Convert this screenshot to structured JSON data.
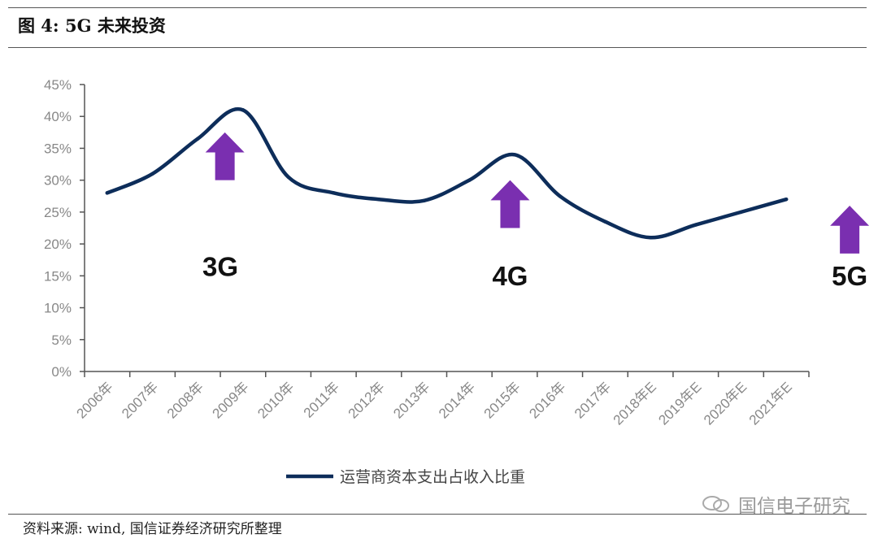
{
  "figure": {
    "title": "图 4:  5G 未来投资",
    "source": "资料来源: wind, 国信证券经济研究所整理",
    "watermark": "国信电子研究"
  },
  "colors": {
    "line": "#0d2d5a",
    "arrow": "#7a2fb0",
    "axis": "#555555",
    "tick_text": "#888888"
  },
  "chart_data": {
    "type": "line",
    "categories": [
      "2006年",
      "2007年",
      "2008年",
      "2009年",
      "2010年",
      "2011年",
      "2012年",
      "2013年",
      "2014年",
      "2015年",
      "2016年",
      "2017年",
      "2018年E",
      "2019年E",
      "2020年E",
      "2021年E"
    ],
    "series": [
      {
        "name": "运营商资本支出占收入比重",
        "values": [
          28.0,
          31.0,
          36.5,
          41.0,
          30.5,
          28.0,
          27.0,
          26.8,
          30.0,
          34.0,
          27.5,
          23.5,
          21.0,
          23.0,
          25.0,
          27.0
        ]
      }
    ],
    "y_ticks": [
      "0%",
      "5%",
      "10%",
      "15%",
      "20%",
      "25%",
      "30%",
      "35%",
      "40%",
      "45%"
    ],
    "ylim": [
      0,
      45
    ],
    "annotations": [
      {
        "label": "3G",
        "arrow_x": 3.1,
        "arrow_y": [
          30.0,
          37.5
        ],
        "label_x": 3.0,
        "label_y": 15.0
      },
      {
        "label": "4G",
        "arrow_x": 9.4,
        "arrow_y": [
          22.5,
          30.0
        ],
        "label_x": 9.4,
        "label_y": 13.5
      },
      {
        "label": "5G",
        "arrow_x": 16.9,
        "arrow_y": [
          18.5,
          26.0
        ],
        "label_x": 16.9,
        "label_y": 13.5
      }
    ],
    "legend_position": "bottom",
    "grid": false
  }
}
